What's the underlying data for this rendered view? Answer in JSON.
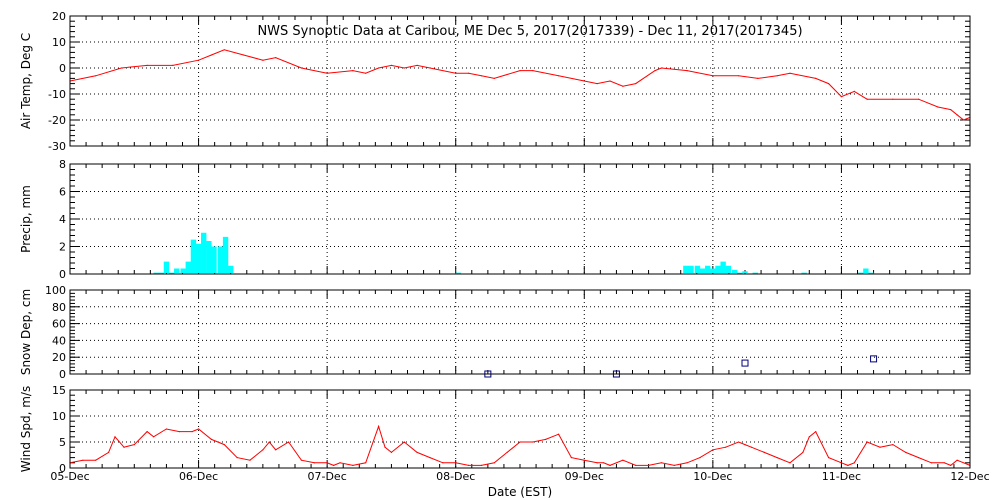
{
  "title": "NWS Synoptic Data at Caribou, ME   Dec  5, 2017(2017339) - Dec 11, 2017(2017345)",
  "x_axis": {
    "label": "Date (EST)",
    "tick_labels": [
      "05-Dec",
      "06-Dec",
      "07-Dec",
      "08-Dec",
      "09-Dec",
      "10-Dec",
      "11-Dec",
      "12-Dec"
    ]
  },
  "chart_data": [
    {
      "type": "line",
      "ylabel": "Air Temp, Deg C",
      "ylim": [
        -30,
        20
      ],
      "y_ticks": [
        20,
        10,
        0,
        -10,
        -20,
        -30
      ],
      "xlim": [
        0,
        7
      ],
      "color": "#ff0000",
      "grid": true,
      "x": [
        0,
        0.2,
        0.4,
        0.6,
        0.8,
        1.0,
        1.1,
        1.2,
        1.35,
        1.5,
        1.6,
        1.8,
        2.0,
        2.2,
        2.3,
        2.4,
        2.5,
        2.6,
        2.7,
        2.8,
        3.0,
        3.1,
        3.2,
        3.3,
        3.5,
        3.6,
        3.8,
        4.0,
        4.1,
        4.2,
        4.3,
        4.4,
        4.55,
        4.6,
        4.8,
        5.0,
        5.2,
        5.35,
        5.5,
        5.6,
        5.8,
        5.9,
        6.0,
        6.1,
        6.2,
        6.4,
        6.6,
        6.75,
        6.85,
        6.9,
        6.95,
        7.0
      ],
      "y": [
        -5,
        -3,
        0,
        1,
        1,
        3,
        5,
        7,
        5,
        3,
        4,
        0,
        -2,
        -1,
        -2,
        0,
        1,
        0,
        1,
        0,
        -2,
        -2,
        -3,
        -4,
        -1,
        -1,
        -3,
        -5,
        -6,
        -5,
        -7,
        -6,
        -1,
        0,
        -1,
        -3,
        -3,
        -4,
        -3,
        -2,
        -4,
        -6,
        -11,
        -9,
        -12,
        -12,
        -12,
        -15,
        -16,
        -18,
        -20,
        -19
      ]
    },
    {
      "type": "bar",
      "ylabel": "Precip, mm",
      "ylim": [
        0,
        8
      ],
      "y_ticks": [
        8,
        6,
        4,
        2,
        0
      ],
      "xlim": [
        0,
        7
      ],
      "color": "#00ffff",
      "grid": true,
      "bin_width": 0.0417,
      "x": [
        0.67,
        0.71,
        0.75,
        0.79,
        0.83,
        0.88,
        0.92,
        0.96,
        1.0,
        1.04,
        1.08,
        1.12,
        1.17,
        1.21,
        1.25,
        3.02,
        4.79,
        4.83,
        4.88,
        4.92,
        4.96,
        5.0,
        5.04,
        5.08,
        5.12,
        5.17,
        5.21,
        5.25,
        5.33,
        5.71,
        6.15,
        6.19,
        6.23
      ],
      "values": [
        0.1,
        0.1,
        0.9,
        0.1,
        0.4,
        0.4,
        0.9,
        2.5,
        2.2,
        3.0,
        2.4,
        2.0,
        2.0,
        2.7,
        0.6,
        0.1,
        0.6,
        0.6,
        0.6,
        0.4,
        0.6,
        0.4,
        0.6,
        0.9,
        0.6,
        0.3,
        0.1,
        0.2,
        0.1,
        0.1,
        0.1,
        0.4,
        0.1
      ]
    },
    {
      "type": "scatter",
      "ylabel": "Snow Dep, cm",
      "ylim": [
        0,
        100
      ],
      "y_ticks": [
        100,
        80,
        60,
        40,
        20,
        0
      ],
      "xlim": [
        0,
        7
      ],
      "color": "#000080",
      "marker": "square",
      "grid": true,
      "x": [
        3.25,
        4.25,
        5.25,
        6.25
      ],
      "y": [
        0,
        0,
        13,
        18
      ]
    },
    {
      "type": "line",
      "ylabel": "Wind Spd, m/s",
      "ylim": [
        0,
        15
      ],
      "y_ticks": [
        15,
        10,
        5,
        0
      ],
      "xlim": [
        0,
        7
      ],
      "color": "#ff0000",
      "grid": true,
      "x": [
        0,
        0.1,
        0.2,
        0.3,
        0.35,
        0.42,
        0.5,
        0.6,
        0.65,
        0.75,
        0.85,
        0.95,
        1.0,
        1.1,
        1.2,
        1.3,
        1.4,
        1.5,
        1.55,
        1.6,
        1.7,
        1.8,
        1.9,
        2.0,
        2.05,
        2.1,
        2.2,
        2.3,
        2.4,
        2.45,
        2.5,
        2.6,
        2.7,
        2.8,
        2.9,
        3.0,
        3.1,
        3.2,
        3.3,
        3.4,
        3.5,
        3.6,
        3.7,
        3.8,
        3.9,
        4.0,
        4.1,
        4.15,
        4.2,
        4.3,
        4.4,
        4.5,
        4.6,
        4.7,
        4.8,
        4.9,
        5.0,
        5.1,
        5.2,
        5.25,
        5.3,
        5.4,
        5.5,
        5.6,
        5.7,
        5.75,
        5.8,
        5.9,
        6.0,
        6.05,
        6.1,
        6.2,
        6.3,
        6.4,
        6.5,
        6.6,
        6.7,
        6.8,
        6.85,
        6.9,
        7.0
      ],
      "y": [
        1,
        1.5,
        1.5,
        3,
        6,
        4,
        4.5,
        7,
        6,
        7.5,
        7,
        7,
        7.5,
        5.5,
        4.5,
        2,
        1.5,
        3.5,
        5,
        3.5,
        5,
        1.5,
        1,
        1,
        0.5,
        1,
        0.5,
        1,
        8,
        4,
        3,
        5,
        3,
        2,
        1,
        1,
        0.5,
        0.5,
        1,
        3,
        5,
        5,
        5.5,
        6.5,
        2,
        1.5,
        1,
        1,
        0.5,
        1.5,
        0.5,
        0.5,
        1,
        0.5,
        1,
        2,
        3.5,
        4,
        5,
        4.5,
        4,
        3,
        2,
        1,
        3,
        6,
        7,
        2,
        1,
        0.5,
        1,
        5,
        4,
        4.5,
        3,
        2,
        1,
        1,
        0.5,
        1.5,
        0.5
      ]
    }
  ]
}
